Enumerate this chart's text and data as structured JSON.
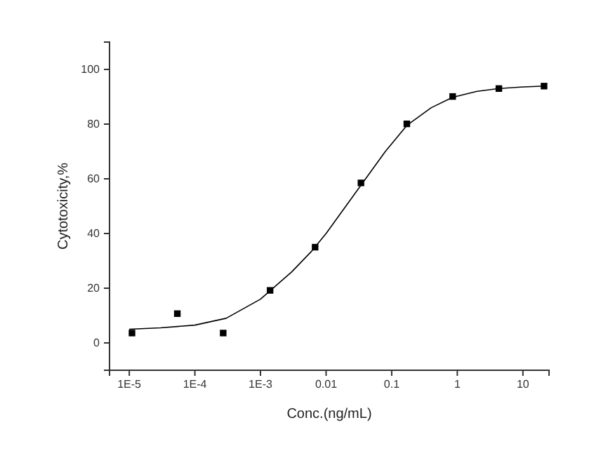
{
  "chart_data": {
    "type": "scatter",
    "xlabel": "Conc.(ng/mL)",
    "ylabel": "Cytotoxicity,%",
    "log": "x",
    "xlim": [
      5e-06,
      25
    ],
    "xticks": [
      {
        "value": 1e-05,
        "label": "1E-5"
      },
      {
        "value": 0.0001,
        "label": "1E-4"
      },
      {
        "value": 0.001,
        "label": "1E-3"
      },
      0.01,
      0.1,
      1,
      10
    ],
    "ylim": [
      -10,
      110
    ],
    "yticks": [
      0,
      20,
      40,
      60,
      80,
      100
    ],
    "grid": false,
    "series": [
      {
        "marker": "square",
        "color": "#000000",
        "x": [
          1.1e-05,
          5.4e-05,
          0.00027,
          0.0014,
          0.0068,
          0.034,
          0.17,
          0.85,
          4.3,
          21
        ],
        "values": [
          3.6,
          10.7,
          3.6,
          19.2,
          35,
          58.5,
          80.1,
          90.1,
          93,
          93.9
        ]
      },
      {
        "type": "line",
        "marker": "none",
        "line_style": "solid",
        "color": "#000000",
        "x": [
          1e-05,
          3e-05,
          0.0001,
          0.0003,
          0.001,
          0.003,
          0.006,
          0.01,
          0.02,
          0.04,
          0.08,
          0.17,
          0.4,
          0.85,
          2,
          4.3,
          10,
          21
        ],
        "values": [
          5,
          5.5,
          6.5,
          9,
          16,
          26,
          33.5,
          40,
          50,
          60,
          70,
          79.5,
          86,
          89.8,
          92,
          93,
          93.6,
          93.9
        ]
      }
    ]
  }
}
